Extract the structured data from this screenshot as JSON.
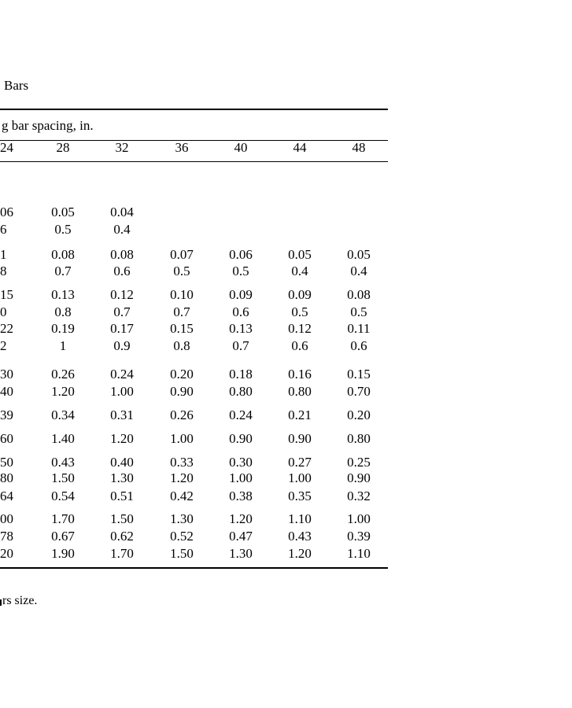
{
  "page": {
    "background_color": "#ffffff",
    "text_color": "#000000"
  },
  "table": {
    "title_fragment": "Bars",
    "spanner_header_fragment": "g bar spacing, in.",
    "columns": [
      "24",
      "28",
      "32",
      "36",
      "40",
      "44",
      "48"
    ],
    "rows": [
      {
        "cells": [
          "06",
          "0.05",
          "0.04",
          "",
          "",
          "",
          ""
        ]
      },
      {
        "cells": [
          "6",
          "0.5",
          "0.4",
          "",
          "",
          "",
          ""
        ]
      },
      {
        "cells": [
          "1",
          "0.08",
          "0.08",
          "0.07",
          "0.06",
          "0.05",
          "0.05"
        ]
      },
      {
        "cells": [
          "8",
          "0.7",
          "0.6",
          "0.5",
          "0.5",
          "0.4",
          "0.4"
        ]
      },
      {
        "cells": [
          "15",
          "0.13",
          "0.12",
          "0.10",
          "0.09",
          "0.09",
          "0.08"
        ]
      },
      {
        "cells": [
          "0",
          "0.8",
          "0.7",
          "0.7",
          "0.6",
          "0.5",
          "0.5"
        ]
      },
      {
        "cells": [
          "22",
          "0.19",
          "0.17",
          "0.15",
          "0.13",
          "0.12",
          "0.11"
        ]
      },
      {
        "cells": [
          "2",
          "1",
          "0.9",
          "0.8",
          "0.7",
          "0.6",
          "0.6"
        ]
      },
      {
        "cells": [
          "30",
          "0.26",
          "0.24",
          "0.20",
          "0.18",
          "0.16",
          "0.15"
        ]
      },
      {
        "cells": [
          "40",
          "1.20",
          "1.00",
          "0.90",
          "0.80",
          "0.80",
          "0.70"
        ]
      },
      {
        "cells": [
          "39",
          "0.34",
          "0.31",
          "0.26",
          "0.24",
          "0.21",
          "0.20"
        ]
      },
      {
        "cells": [
          "60",
          "1.40",
          "1.20",
          "1.00",
          "0.90",
          "0.90",
          "0.80"
        ]
      },
      {
        "cells": [
          "50",
          "0.43",
          "0.40",
          "0.33",
          "0.30",
          "0.27",
          "0.25"
        ]
      },
      {
        "cells": [
          "80",
          "1.50",
          "1.30",
          "1.20",
          "1.00",
          "1.00",
          "0.90"
        ]
      },
      {
        "cells": [
          "64",
          "0.54",
          "0.51",
          "0.42",
          "0.38",
          "0.35",
          "0.32"
        ]
      },
      {
        "cells": [
          "00",
          "1.70",
          "1.50",
          "1.30",
          "1.20",
          "1.10",
          "1.00"
        ]
      },
      {
        "cells": [
          "78",
          "0.67",
          "0.62",
          "0.52",
          "0.47",
          "0.43",
          "0.39"
        ]
      },
      {
        "cells": [
          "20",
          "1.90",
          "1.70",
          "1.50",
          "1.30",
          "1.20",
          "1.10"
        ]
      }
    ]
  },
  "footnote": {
    "text_fragment": "rs size."
  }
}
